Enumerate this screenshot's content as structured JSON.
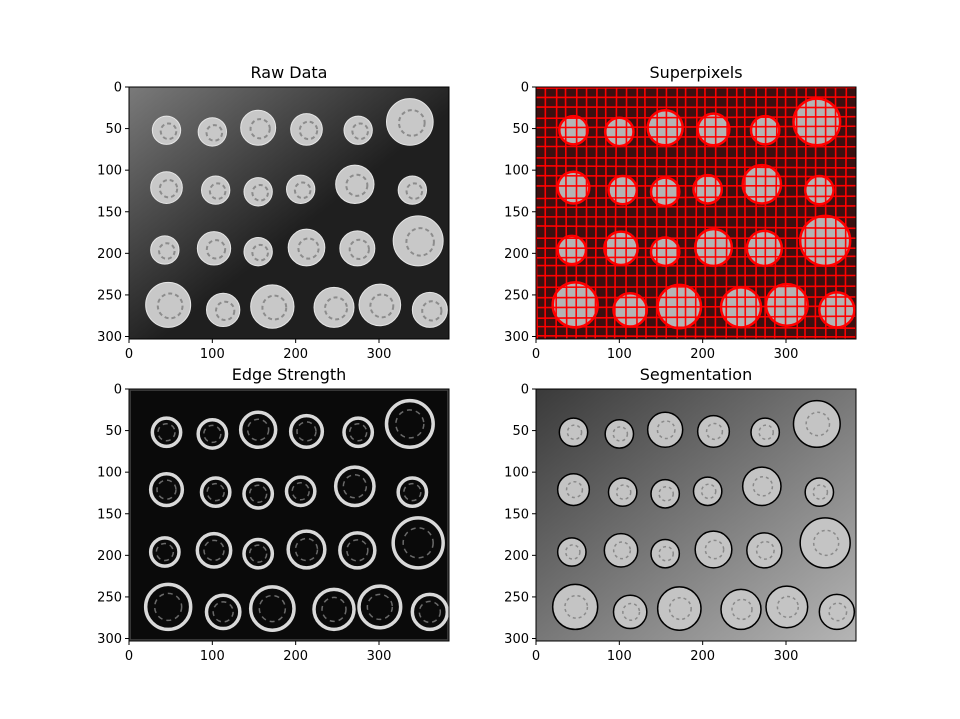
{
  "figure": {
    "background": "#ffffff",
    "panels": [
      {
        "title": "Raw Data",
        "kind": "grayscale-image",
        "colors": {
          "background_dark": "#1f1f1f",
          "background_light": "#7a7a7a",
          "coin": "#c8c8c8",
          "coin_detail": "#8c8c8c"
        }
      },
      {
        "title": "Superpixels",
        "kind": "superpixel-boundaries",
        "colors": {
          "boundary": "#ff0000",
          "background": "#3a1010",
          "coin": "#b4b4b4"
        }
      },
      {
        "title": "Edge Strength",
        "kind": "edge-map",
        "colors": {
          "background": "#0a0a0a",
          "ring": "#d9d9d9",
          "texture": "#6a6a6a"
        }
      },
      {
        "title": "Segmentation",
        "kind": "segmented-image",
        "colors": {
          "background_dark": "#3a3a3a",
          "background_light": "#b5b5b5",
          "coin": "#c4c4c4",
          "outline": "#000000"
        }
      }
    ]
  },
  "chart_data": [
    {
      "type": "image",
      "title": "Raw Data",
      "xlim": [
        0,
        384
      ],
      "ylim": [
        303,
        0
      ],
      "x_ticks": [
        0,
        100,
        200,
        300
      ],
      "y_ticks": [
        0,
        50,
        100,
        150,
        200,
        250,
        300
      ],
      "x_tick_labels": [
        "0",
        "100",
        "200",
        "300"
      ],
      "y_tick_labels": [
        "0",
        "50",
        "100",
        "150",
        "200",
        "250",
        "300"
      ]
    },
    {
      "type": "image",
      "title": "Superpixels",
      "xlim": [
        0,
        384
      ],
      "ylim": [
        303,
        0
      ],
      "x_ticks": [
        0,
        100,
        200,
        300
      ],
      "y_ticks": [
        0,
        50,
        100,
        150,
        200,
        250,
        300
      ],
      "x_tick_labels": [
        "0",
        "100",
        "200",
        "300"
      ],
      "y_tick_labels": [
        "0",
        "50",
        "100",
        "150",
        "200",
        "250",
        "300"
      ]
    },
    {
      "type": "image",
      "title": "Edge Strength",
      "xlim": [
        0,
        384
      ],
      "ylim": [
        303,
        0
      ],
      "x_ticks": [
        0,
        100,
        200,
        300
      ],
      "y_ticks": [
        0,
        50,
        100,
        150,
        200,
        250,
        300
      ],
      "x_tick_labels": [
        "0",
        "100",
        "200",
        "300"
      ],
      "y_tick_labels": [
        "0",
        "50",
        "100",
        "150",
        "200",
        "250",
        "300"
      ]
    },
    {
      "type": "image",
      "title": "Segmentation",
      "xlim": [
        0,
        384
      ],
      "ylim": [
        303,
        0
      ],
      "x_ticks": [
        0,
        100,
        200,
        300
      ],
      "y_ticks": [
        0,
        50,
        100,
        150,
        200,
        250,
        300
      ],
      "x_tick_labels": [
        "0",
        "100",
        "200",
        "300"
      ],
      "y_tick_labels": [
        "0",
        "50",
        "100",
        "150",
        "200",
        "250",
        "300"
      ]
    }
  ],
  "coins": [
    {
      "x": 45,
      "y": 52,
      "r": 17
    },
    {
      "x": 100,
      "y": 54,
      "r": 17
    },
    {
      "x": 155,
      "y": 49,
      "r": 21
    },
    {
      "x": 213,
      "y": 51,
      "r": 19
    },
    {
      "x": 275,
      "y": 52,
      "r": 17
    },
    {
      "x": 337,
      "y": 42,
      "r": 28
    },
    {
      "x": 45,
      "y": 121,
      "r": 19
    },
    {
      "x": 104,
      "y": 124,
      "r": 17
    },
    {
      "x": 155,
      "y": 126,
      "r": 17
    },
    {
      "x": 206,
      "y": 123,
      "r": 17
    },
    {
      "x": 271,
      "y": 117,
      "r": 23
    },
    {
      "x": 340,
      "y": 124,
      "r": 17
    },
    {
      "x": 43,
      "y": 196,
      "r": 17
    },
    {
      "x": 102,
      "y": 194,
      "r": 20
    },
    {
      "x": 155,
      "y": 198,
      "r": 17
    },
    {
      "x": 213,
      "y": 193,
      "r": 22
    },
    {
      "x": 274,
      "y": 194,
      "r": 21
    },
    {
      "x": 347,
      "y": 185,
      "r": 30
    },
    {
      "x": 47,
      "y": 262,
      "r": 27
    },
    {
      "x": 113,
      "y": 268,
      "r": 20
    },
    {
      "x": 172,
      "y": 264,
      "r": 26
    },
    {
      "x": 246,
      "y": 265,
      "r": 24
    },
    {
      "x": 301,
      "y": 262,
      "r": 25
    },
    {
      "x": 361,
      "y": 268,
      "r": 21
    }
  ]
}
